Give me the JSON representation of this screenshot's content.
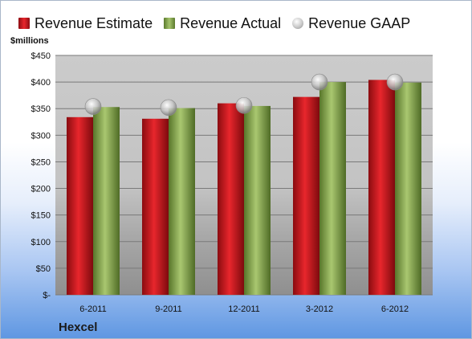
{
  "chart_data": {
    "type": "bar",
    "categories": [
      "6-2011",
      "9-2011",
      "12-2011",
      "3-2012",
      "6-2012"
    ],
    "series": [
      {
        "name": "Revenue Estimate",
        "values": [
          334,
          331,
          360,
          372,
          404
        ],
        "color": "#d4191f"
      },
      {
        "name": "Revenue Actual",
        "values": [
          353,
          351,
          355,
          400,
          399
        ],
        "color": "#8fad5a"
      },
      {
        "name": "Revenue GAAP",
        "values": [
          354,
          352,
          356,
          400,
          400
        ],
        "color": "#c8c8c8",
        "marker": "sphere"
      }
    ],
    "ylabel": "$millions",
    "ylim": [
      0,
      450
    ],
    "yticks": [
      "$-",
      "$50",
      "$100",
      "$150",
      "$200",
      "$250",
      "$300",
      "$350",
      "$400",
      "$450"
    ],
    "grid": true,
    "legend_position": "top"
  },
  "footer": {
    "company": "Hexcel"
  }
}
